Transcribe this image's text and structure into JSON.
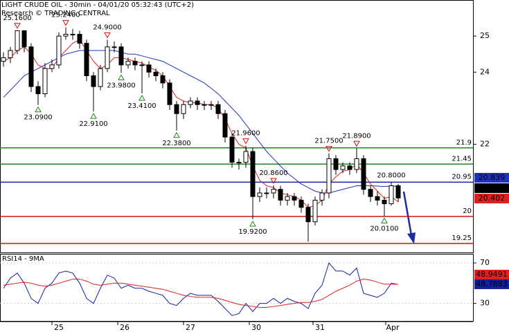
{
  "chart_data": {
    "type": "candlestick",
    "title": "LIGHT CRUDE OIL - 30min - 04/01/20 05:32:43 (UTC+2)",
    "subtitle": "Research © TRADING CENTRAL",
    "open": [
      24.3,
      24.4,
      24.6,
      25.15,
      24.7,
      23.6,
      23.4,
      24.1,
      24.2,
      25.0,
      25.05,
      25.05,
      24.8,
      23.9,
      23.6,
      24.1,
      24.7,
      24.7,
      24.2,
      24.3,
      24.2,
      24.2,
      24.0,
      23.9,
      23.7,
      23.1,
      22.85,
      23.1,
      23.2,
      23.1,
      23.1,
      23.1,
      22.85,
      22.2,
      21.5,
      21.5,
      21.8,
      20.55,
      20.65,
      20.65,
      20.75,
      20.45,
      20.55,
      20.45,
      20.25,
      19.85,
      20.45,
      20.65,
      21.6,
      21.3,
      21.4,
      21.3,
      21.6,
      20.75,
      20.55,
      20.45,
      20.35,
      20.85
    ],
    "high": [
      24.55,
      24.7,
      25.16,
      25.15,
      24.8,
      23.75,
      24.25,
      24.35,
      25.1,
      25.24,
      25.2,
      25.15,
      24.9,
      24.0,
      24.2,
      24.9,
      24.85,
      24.8,
      24.4,
      24.4,
      24.3,
      24.3,
      24.1,
      24.0,
      23.8,
      23.2,
      23.2,
      23.3,
      23.3,
      23.2,
      23.2,
      23.2,
      22.95,
      22.3,
      21.6,
      21.96,
      21.9,
      20.8,
      20.8,
      20.86,
      20.85,
      20.65,
      20.65,
      20.55,
      20.35,
      20.55,
      20.75,
      21.75,
      21.7,
      21.5,
      21.5,
      21.89,
      21.7,
      20.85,
      20.7,
      20.55,
      20.95,
      20.9
    ],
    "low": [
      24.15,
      24.25,
      24.5,
      24.55,
      23.45,
      23.09,
      23.3,
      24.0,
      24.1,
      24.9,
      24.9,
      24.65,
      23.75,
      22.91,
      23.5,
      24.0,
      24.55,
      23.98,
      24.1,
      24.05,
      23.41,
      23.85,
      23.75,
      23.55,
      22.95,
      22.38,
      22.7,
      23.0,
      22.95,
      22.95,
      22.95,
      22.7,
      22.05,
      21.35,
      21.3,
      21.35,
      19.92,
      20.4,
      20.5,
      20.5,
      20.3,
      20.3,
      20.3,
      20.1,
      19.3,
      19.75,
      20.3,
      20.5,
      21.15,
      21.2,
      21.15,
      21.2,
      20.6,
      20.4,
      20.3,
      20.01,
      20.3,
      20.4
    ],
    "close": [
      24.4,
      24.6,
      25.15,
      24.7,
      23.6,
      23.4,
      24.1,
      24.2,
      25.0,
      25.05,
      25.05,
      24.8,
      23.9,
      23.6,
      24.1,
      24.7,
      24.7,
      24.2,
      24.3,
      24.2,
      24.2,
      24.0,
      23.9,
      23.7,
      23.1,
      22.85,
      23.1,
      23.2,
      23.1,
      23.1,
      23.1,
      22.85,
      22.2,
      21.5,
      21.5,
      21.8,
      20.55,
      20.65,
      20.65,
      20.75,
      20.45,
      20.55,
      20.45,
      20.25,
      19.85,
      20.45,
      20.65,
      21.6,
      21.3,
      21.4,
      21.3,
      21.6,
      20.75,
      20.55,
      20.45,
      20.35,
      20.85,
      20.51
    ],
    "candle_color": "#000000",
    "ma_short": {
      "color": "#e02020",
      "values": [
        24.3,
        24.4,
        24.6,
        24.7,
        24.5,
        24.2,
        24.1,
        24.1,
        24.4,
        24.6,
        24.8,
        24.9,
        24.6,
        24.3,
        24.1,
        24.2,
        24.4,
        24.4,
        24.35,
        24.3,
        24.25,
        24.15,
        24.05,
        23.9,
        23.6,
        23.3,
        23.2,
        23.15,
        23.15,
        23.1,
        23.1,
        23.0,
        22.7,
        22.3,
        22.0,
        21.9,
        21.4,
        21.0,
        20.85,
        20.8,
        20.65,
        20.6,
        20.55,
        20.45,
        20.25,
        20.3,
        20.45,
        20.9,
        21.1,
        21.25,
        21.3,
        21.45,
        21.2,
        20.9,
        20.7,
        20.5,
        20.55,
        20.402
      ]
    },
    "ma_long": {
      "color": "#2030c0",
      "values": [
        23.3,
        23.5,
        23.7,
        23.9,
        24.0,
        24.1,
        24.2,
        24.3,
        24.4,
        24.5,
        24.55,
        24.6,
        24.6,
        24.6,
        24.6,
        24.6,
        24.6,
        24.55,
        24.5,
        24.5,
        24.45,
        24.4,
        24.35,
        24.3,
        24.2,
        24.1,
        24.0,
        23.9,
        23.8,
        23.7,
        23.55,
        23.4,
        23.2,
        23.0,
        22.8,
        22.55,
        22.3,
        22.05,
        21.8,
        21.6,
        21.4,
        21.2,
        21.05,
        20.9,
        20.8,
        20.7,
        20.65,
        20.65,
        20.7,
        20.75,
        20.8,
        20.85,
        20.85,
        20.85,
        20.84,
        20.83,
        20.84,
        20.839
      ]
    },
    "ylim": [
      19,
      26
    ],
    "yticks": [
      22,
      24,
      25
    ],
    "levels": [
      {
        "value": 21.9,
        "color": "#1a8a1a"
      },
      {
        "value": 21.45,
        "color": "#1a8a1a"
      },
      {
        "value": 20.95,
        "color": "#1020b0"
      },
      {
        "value": 20,
        "color": "#d01010"
      },
      {
        "value": 19.25,
        "color": "#d01010"
      }
    ],
    "annotations": [
      "25.1600",
      "25.2400",
      "24.9000",
      "23.0900",
      "22.9100",
      "23.9800",
      "23.4100",
      "22.3800",
      "21.9600",
      "20.8600",
      "19.9200",
      "21.7500",
      "21.8900",
      "20.8000",
      "20.0100"
    ],
    "day_labels": [
      "25",
      "26",
      "27",
      "30",
      "31",
      "Apr"
    ],
    "rsi": {
      "title": "RSI14 - 9MA",
      "color": "#1020a0",
      "ma_color": "#e02020",
      "values": [
        45,
        55,
        60,
        50,
        35,
        30,
        45,
        50,
        60,
        62,
        60,
        50,
        35,
        30,
        45,
        58,
        55,
        45,
        48,
        45,
        45,
        42,
        40,
        38,
        30,
        28,
        35,
        40,
        38,
        38,
        38,
        32,
        25,
        18,
        20,
        30,
        22,
        30,
        30,
        35,
        30,
        35,
        32,
        30,
        25,
        40,
        48,
        70,
        62,
        62,
        58,
        65,
        40,
        38,
        36,
        40,
        50,
        48.7883
      ],
      "ma": [
        48,
        49,
        50,
        51,
        50,
        48,
        47,
        48,
        50,
        52,
        54,
        54,
        52,
        49,
        48,
        49,
        50,
        50,
        49,
        48,
        47,
        46,
        45,
        44,
        42,
        40,
        38,
        37,
        36,
        36,
        36,
        35,
        33,
        31,
        29,
        28,
        27,
        26,
        26,
        27,
        28,
        29,
        30,
        31,
        31,
        32,
        34,
        38,
        42,
        45,
        48,
        52,
        54,
        53,
        51,
        49,
        49,
        48.9491
      ],
      "ylim": [
        12,
        79
      ],
      "yticks": [
        70,
        30
      ]
    }
  }
}
